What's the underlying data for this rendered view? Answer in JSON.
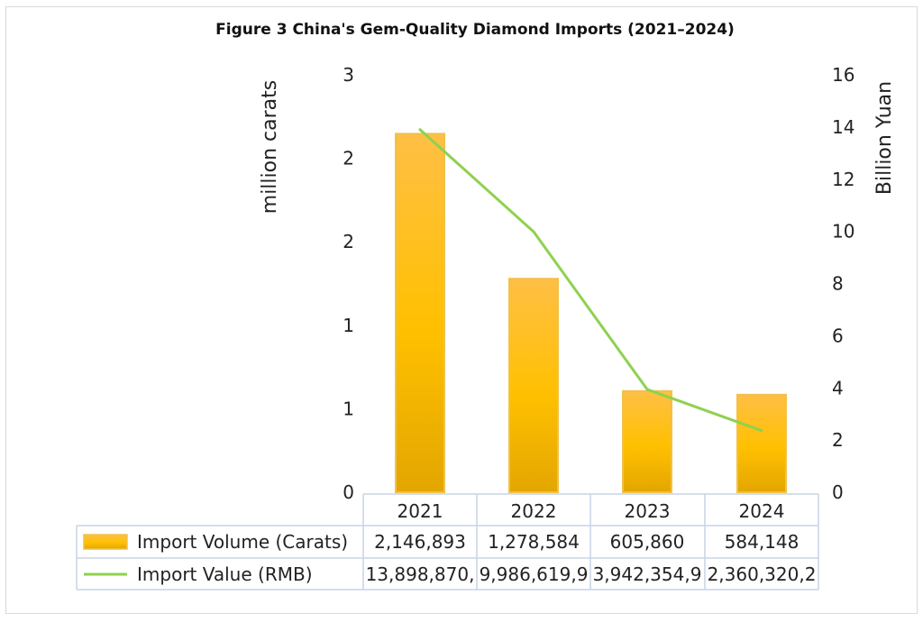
{
  "chart_data": {
    "type": "bar",
    "title": "Figure 3 China's Gem-Quality Diamond Imports (2021–2024)",
    "categories": [
      "2021",
      "2022",
      "2023",
      "2024"
    ],
    "y_left": {
      "label": "million carats",
      "range": [
        0,
        2.5
      ],
      "tick_labels": [
        "0",
        "1",
        "1",
        "2",
        "2",
        "3"
      ]
    },
    "y_right": {
      "label": "Billion Yuan",
      "range": [
        0,
        16
      ],
      "tick_labels": [
        "0",
        "2",
        "4",
        "6",
        "8",
        "10",
        "12",
        "14",
        "16"
      ]
    },
    "series": [
      {
        "name": "Import Volume (Carats)",
        "type": "bar",
        "axis": "left",
        "values": [
          2.146893,
          1.278584,
          0.60586,
          0.584148
        ],
        "table_values": [
          "2,146,893",
          "1,278,584",
          "605,860",
          "584,148"
        ],
        "color": "#ffc000"
      },
      {
        "name": "Import Value (RMB)",
        "type": "line",
        "axis": "right",
        "values": [
          13.89887,
          9.986619,
          3.942354,
          2.36032
        ],
        "table_values": [
          "13,898,870,",
          "9,986,619,9",
          "3,942,354,9",
          "2,360,320,2"
        ],
        "color": "#8fd14f"
      }
    ],
    "grid": false,
    "legend": "data-table"
  }
}
